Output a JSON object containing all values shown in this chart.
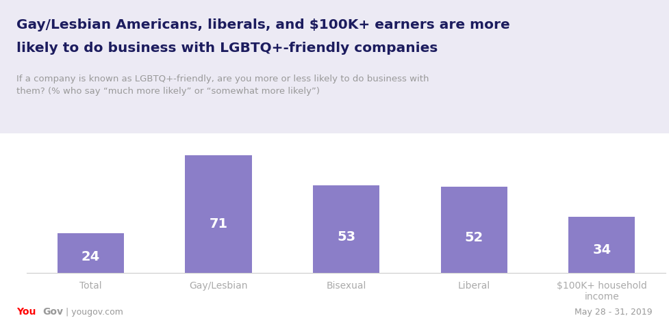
{
  "title_line1": "Gay/Lesbian Americans, liberals, and $100K+ earners are more",
  "title_line2": "likely to do business with LGBTQ+-friendly companies",
  "subtitle": "If a company is known as LGBTQ+-friendly, are you more or less likely to do business with\nthem? (% who say “much more likely” or “somewhat more likely”)",
  "categories": [
    "Total",
    "Gay/Lesbian",
    "Bisexual",
    "Liberal",
    "$100K+ household\nincome"
  ],
  "values": [
    24,
    71,
    53,
    52,
    34
  ],
  "bar_color": "#8B7EC8",
  "header_bg_color": "#ECEAF4",
  "background_color": "#FFFFFF",
  "value_label_color": "#FFFFFF",
  "title_color": "#1C1C5E",
  "subtitle_color": "#999999",
  "axis_label_color": "#AAAAAA",
  "yougov_red": "#FF0000",
  "yougov_gray": "#999999",
  "date_text": "May 28 - 31, 2019",
  "logo_pipe_text": "| yougov.com",
  "title_fontsize": 14.5,
  "subtitle_fontsize": 9.5,
  "value_fontsize": 14,
  "tick_fontsize": 10,
  "ylim": [
    0,
    82
  ]
}
